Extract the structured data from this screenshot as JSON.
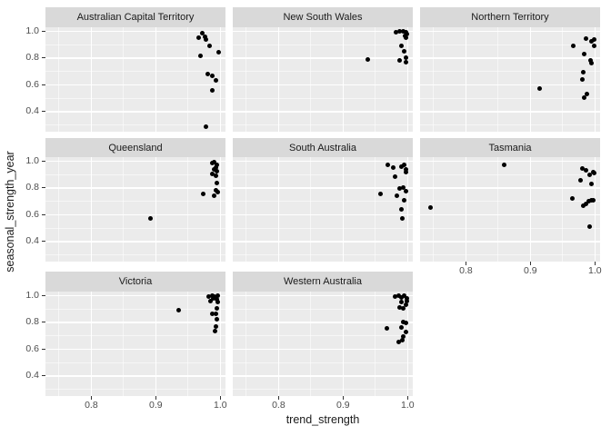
{
  "colors": {
    "background": "#FFFFFF",
    "panel_background": "#EBEBEB",
    "strip_background": "#D9D9D9",
    "grid_line": "#FFFFFF",
    "point": "#000000",
    "tick_label_text": "#4D4D4D",
    "axis_title_text": "#1A1A1A",
    "strip_text": "#1A1A1A",
    "tick_mark": "#333333"
  },
  "chart_data": {
    "type": "scatter",
    "xlabel": "trend_strength",
    "ylabel": "seasonal_strength_year",
    "grid": "major+minor",
    "legend": "none",
    "x_ticks": [
      0.8,
      0.9,
      1.0
    ],
    "x_tick_labels": [
      "0.8",
      "0.9",
      "1.0"
    ],
    "y_ticks": [
      1.0,
      0.8,
      0.6,
      0.4
    ],
    "y_tick_labels": [
      "1.0",
      "0.8",
      "0.6",
      "0.4"
    ],
    "x_minor_ticks": [
      0.75,
      0.85,
      0.95
    ],
    "y_minor_ticks": [
      0.9,
      0.7,
      0.5,
      0.3
    ],
    "xlim": [
      0.729,
      1.008
    ],
    "ylim": [
      0.25,
      1.03
    ],
    "facet_variable_values": [
      "Australian Capital Territory",
      "New South Wales",
      "Northern Territory",
      "Queensland",
      "South Australia",
      "Tasmania",
      "Victoria",
      "Western Australia"
    ],
    "facets": [
      {
        "title": "Australian Capital Territory",
        "row": 0,
        "col": 0,
        "x_axis": false,
        "points": [
          [
            0.972,
            0.989
          ],
          [
            0.967,
            0.951
          ],
          [
            0.976,
            0.962
          ],
          [
            0.978,
            0.94
          ],
          [
            0.983,
            0.894
          ],
          [
            0.997,
            0.842
          ],
          [
            0.969,
            0.813
          ],
          [
            0.98,
            0.684
          ],
          [
            0.987,
            0.668
          ],
          [
            0.993,
            0.63
          ],
          [
            0.987,
            0.562
          ],
          [
            0.977,
            0.284
          ]
        ]
      },
      {
        "title": "New South Wales",
        "row": 0,
        "col": 1,
        "x_axis": false,
        "points": [
          [
            0.982,
            0.995
          ],
          [
            0.988,
            0.999
          ],
          [
            0.993,
            0.997
          ],
          [
            0.997,
            0.99
          ],
          [
            0.999,
            0.982
          ],
          [
            0.996,
            0.964
          ],
          [
            0.998,
            0.95
          ],
          [
            0.991,
            0.894
          ],
          [
            0.995,
            0.849
          ],
          [
            0.998,
            0.804
          ],
          [
            0.988,
            0.781
          ],
          [
            0.997,
            0.769
          ],
          [
            0.938,
            0.79
          ]
        ]
      },
      {
        "title": "Northern Territory",
        "row": 0,
        "col": 2,
        "x_axis": false,
        "points": [
          [
            0.966,
            0.89
          ],
          [
            0.986,
            0.947
          ],
          [
            0.995,
            0.924
          ],
          [
            0.999,
            0.94
          ],
          [
            0.999,
            0.894
          ],
          [
            0.984,
            0.831
          ],
          [
            0.993,
            0.781
          ],
          [
            0.995,
            0.765
          ],
          [
            0.982,
            0.691
          ],
          [
            0.981,
            0.641
          ],
          [
            0.914,
            0.571
          ],
          [
            0.987,
            0.533
          ],
          [
            0.984,
            0.506
          ]
        ]
      },
      {
        "title": "Queensland",
        "row": 1,
        "col": 0,
        "x_axis": false,
        "points": [
          [
            0.991,
            0.996
          ],
          [
            0.987,
            0.985
          ],
          [
            0.994,
            0.975
          ],
          [
            0.993,
            0.955
          ],
          [
            0.99,
            0.938
          ],
          [
            0.994,
            0.922
          ],
          [
            0.987,
            0.905
          ],
          [
            0.993,
            0.89
          ],
          [
            0.994,
            0.838
          ],
          [
            0.993,
            0.78
          ],
          [
            0.996,
            0.768
          ],
          [
            0.99,
            0.74
          ],
          [
            0.974,
            0.758
          ],
          [
            0.892,
            0.569
          ]
        ]
      },
      {
        "title": "South Australia",
        "row": 1,
        "col": 1,
        "x_axis": false,
        "points": [
          [
            0.969,
            0.971
          ],
          [
            0.977,
            0.949
          ],
          [
            0.991,
            0.96
          ],
          [
            0.994,
            0.971
          ],
          [
            0.997,
            0.937
          ],
          [
            0.998,
            0.915
          ],
          [
            0.98,
            0.885
          ],
          [
            0.988,
            0.797
          ],
          [
            0.993,
            0.806
          ],
          [
            0.997,
            0.779
          ],
          [
            0.983,
            0.743
          ],
          [
            0.958,
            0.757
          ],
          [
            0.994,
            0.711
          ],
          [
            0.99,
            0.643
          ],
          [
            0.992,
            0.575
          ]
        ]
      },
      {
        "title": "Tasmania",
        "row": 1,
        "col": 2,
        "x_axis": true,
        "points": [
          [
            0.86,
            0.969
          ],
          [
            0.98,
            0.944
          ],
          [
            0.986,
            0.93
          ],
          [
            0.992,
            0.896
          ],
          [
            0.997,
            0.915
          ],
          [
            0.999,
            0.91
          ],
          [
            0.977,
            0.856
          ],
          [
            0.995,
            0.829
          ],
          [
            0.965,
            0.72
          ],
          [
            0.982,
            0.666
          ],
          [
            0.986,
            0.684
          ],
          [
            0.99,
            0.7
          ],
          [
            0.994,
            0.706
          ],
          [
            0.998,
            0.711
          ],
          [
            0.745,
            0.652
          ],
          [
            0.992,
            0.514
          ]
        ]
      },
      {
        "title": "Victoria",
        "row": 2,
        "col": 0,
        "x_axis": true,
        "points": [
          [
            0.982,
            0.995
          ],
          [
            0.987,
            0.999
          ],
          [
            0.991,
            0.992
          ],
          [
            0.996,
            0.997
          ],
          [
            0.989,
            0.981
          ],
          [
            0.994,
            0.972
          ],
          [
            0.985,
            0.962
          ],
          [
            0.996,
            0.952
          ],
          [
            0.995,
            0.903
          ],
          [
            0.987,
            0.867
          ],
          [
            0.993,
            0.864
          ],
          [
            0.994,
            0.821
          ],
          [
            0.993,
            0.769
          ],
          [
            0.992,
            0.735
          ],
          [
            0.936,
            0.89
          ]
        ]
      },
      {
        "title": "Western Australia",
        "row": 2,
        "col": 1,
        "x_axis": true,
        "points": [
          [
            0.981,
            0.994
          ],
          [
            0.986,
            0.999
          ],
          [
            0.991,
            0.987
          ],
          [
            0.995,
            0.998
          ],
          [
            0.999,
            0.98
          ],
          [
            0.999,
            0.957
          ],
          [
            0.991,
            0.953
          ],
          [
            0.997,
            0.93
          ],
          [
            0.988,
            0.913
          ],
          [
            0.993,
            0.903
          ],
          [
            0.993,
            0.806
          ],
          [
            0.998,
            0.795
          ],
          [
            0.991,
            0.761
          ],
          [
            0.968,
            0.754
          ],
          [
            0.997,
            0.727
          ],
          [
            0.993,
            0.697
          ],
          [
            0.986,
            0.655
          ],
          [
            0.992,
            0.67
          ]
        ]
      }
    ]
  }
}
